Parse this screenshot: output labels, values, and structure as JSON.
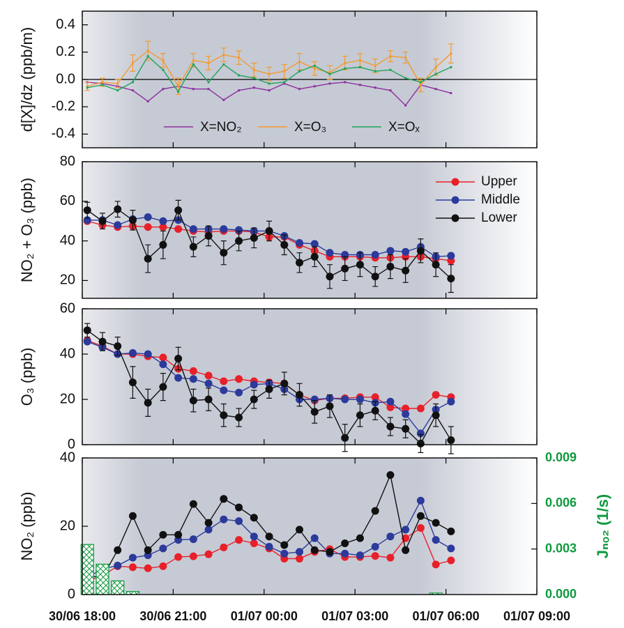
{
  "chart_data": [
    {
      "type": "line",
      "ylabel": "d[X]/dz  (ppb/m)",
      "ylim": [
        -0.5,
        0.5
      ],
      "yticks": [
        -0.4,
        -0.2,
        {
          "value": 0,
          "label": "0.0"
        },
        0.2,
        0.4
      ],
      "hline": 0,
      "markers": false,
      "legend": "lower center",
      "x": [
        "30/06 18:10",
        "30/06 18:40",
        "30/06 19:10",
        "30/06 19:40",
        "30/06 20:10",
        "30/06 20:40",
        "30/06 21:10",
        "30/06 21:40",
        "30/06 22:10",
        "30/06 22:40",
        "30/06 23:10",
        "30/06 23:40",
        "01/07 00:10",
        "01/07 00:40",
        "01/07 01:10",
        "01/07 01:40",
        "01/07 02:10",
        "01/07 02:40",
        "01/07 03:10",
        "01/07 03:40",
        "01/07 04:10",
        "01/07 04:40",
        "01/07 05:10",
        "01/07 05:40",
        "01/07 06:10"
      ],
      "series": [
        {
          "name": "X=NO₂",
          "color": "#8b2f9e",
          "values": [
            -0.02,
            -0.03,
            -0.05,
            -0.08,
            -0.16,
            -0.07,
            -0.05,
            -0.07,
            -0.07,
            -0.15,
            -0.08,
            -0.06,
            -0.08,
            -0.03,
            -0.07,
            -0.05,
            -0.03,
            -0.02,
            -0.04,
            -0.06,
            -0.08,
            -0.19,
            -0.04,
            -0.07,
            -0.1
          ]
        },
        {
          "name": "X=O₃",
          "color": "#f39a2e",
          "values": [
            -0.05,
            -0.02,
            -0.03,
            0.12,
            0.21,
            0.14,
            -0.05,
            0.14,
            0.12,
            0.18,
            0.16,
            0.07,
            0.04,
            0.06,
            0.13,
            0.08,
            0.05,
            0.12,
            0.14,
            0.1,
            0.17,
            0.16,
            -0.04,
            0.09,
            0.19
          ],
          "errors": [
            0.03,
            0.03,
            0.03,
            0.06,
            0.07,
            0.05,
            0.06,
            0.05,
            0.05,
            0.05,
            0.05,
            0.05,
            0.05,
            0.05,
            0.06,
            0.05,
            0.05,
            0.05,
            0.05,
            0.05,
            0.04,
            0.04,
            0.05,
            0.06,
            0.07
          ]
        },
        {
          "name": "X=Oₓ",
          "color": "#1fa35a",
          "values": [
            -0.06,
            -0.04,
            -0.08,
            -0.02,
            0.17,
            0.07,
            -0.09,
            0.11,
            -0.02,
            0.11,
            0.03,
            0.01,
            -0.03,
            -0.02,
            0.06,
            0.1,
            0.04,
            0.08,
            0.09,
            0.06,
            0.07,
            0.01,
            -0.02,
            0.04,
            0.09
          ]
        }
      ]
    },
    {
      "type": "line",
      "ylabel": "NO₂ + O₃ (ppb)",
      "ylim": [
        11,
        80
      ],
      "yticks": [
        20,
        40,
        60,
        80
      ],
      "markers": true,
      "legend": "upper right",
      "x": [
        "30/06 18:10",
        "30/06 18:40",
        "30/06 19:10",
        "30/06 19:40",
        "30/06 20:10",
        "30/06 20:40",
        "30/06 21:10",
        "30/06 21:40",
        "30/06 22:10",
        "30/06 22:40",
        "30/06 23:10",
        "30/06 23:40",
        "01/07 00:10",
        "01/07 00:40",
        "01/07 01:10",
        "01/07 01:40",
        "01/07 02:10",
        "01/07 02:40",
        "01/07 03:10",
        "01/07 03:40",
        "01/07 04:10",
        "01/07 04:40",
        "01/07 05:10",
        "01/07 05:40",
        "01/07 06:10"
      ],
      "series": [
        {
          "name": "Upper",
          "color": "#e8202a",
          "values": [
            50,
            48,
            47,
            47.5,
            47,
            47,
            46,
            45,
            44.5,
            45,
            45,
            44.5,
            42,
            42,
            38,
            35,
            32,
            32,
            32,
            31.5,
            31.5,
            32,
            32,
            31,
            30
          ]
        },
        {
          "name": "Middle",
          "color": "#2b3a9b",
          "values": [
            50.5,
            50.5,
            48,
            51,
            52,
            50,
            50.5,
            46,
            46,
            46,
            45.5,
            45,
            45,
            42.5,
            39,
            38.5,
            34,
            33,
            33,
            33,
            35,
            34.5,
            37,
            32,
            32.5
          ]
        },
        {
          "name": "Lower",
          "color": "#111111",
          "values": [
            55.5,
            50,
            56,
            50.5,
            31,
            38,
            55.5,
            37,
            42.5,
            34,
            40,
            41.5,
            45,
            38,
            29,
            32,
            22,
            26,
            28,
            22,
            27,
            25,
            35,
            28,
            21
          ],
          "errors": [
            4,
            4,
            4,
            5,
            7,
            7,
            5,
            5,
            5,
            6,
            5,
            5,
            5,
            5,
            5,
            5,
            6,
            6,
            6,
            5,
            6,
            6,
            6,
            6,
            7
          ]
        }
      ]
    },
    {
      "type": "line",
      "ylabel": "O₃ (ppb)",
      "ylim": [
        0,
        60
      ],
      "yticks": [
        0,
        20,
        40,
        60
      ],
      "markers": true,
      "x": [
        "30/06 18:10",
        "30/06 18:40",
        "30/06 19:10",
        "30/06 19:40",
        "30/06 20:10",
        "30/06 20:40",
        "30/06 21:10",
        "30/06 21:40",
        "30/06 22:10",
        "30/06 22:40",
        "30/06 23:10",
        "30/06 23:40",
        "01/07 00:10",
        "01/07 00:40",
        "01/07 01:10",
        "01/07 01:40",
        "01/07 02:10",
        "01/07 02:40",
        "01/07 03:10",
        "01/07 03:40",
        "01/07 04:10",
        "01/07 04:40",
        "01/07 05:10",
        "01/07 05:40",
        "01/07 06:10"
      ],
      "series": [
        {
          "name": "Upper",
          "color": "#e8202a",
          "values": [
            46,
            43.5,
            40,
            40,
            39,
            38.5,
            33.5,
            32.5,
            30.5,
            28,
            29,
            28,
            27.5,
            27,
            22,
            19.5,
            20.5,
            20.5,
            21,
            21,
            16.5,
            16,
            16,
            22,
            21
          ]
        },
        {
          "name": "Middle",
          "color": "#2b3a9b",
          "values": [
            45.5,
            43,
            40,
            40.5,
            40,
            35.5,
            29.5,
            29,
            27,
            24,
            23,
            26.5,
            27,
            24.5,
            20,
            20,
            20.5,
            20,
            20,
            18.5,
            19,
            13.5,
            5,
            15.5,
            19
          ]
        },
        {
          "name": "Lower",
          "color": "#111111",
          "values": [
            50.5,
            45.5,
            43.5,
            27.5,
            18.5,
            25.5,
            38,
            19.5,
            20,
            13,
            12,
            20,
            24.5,
            27,
            22,
            14.5,
            17,
            3,
            13,
            15,
            8,
            7,
            0.5,
            13,
            2
          ],
          "errors": [
            3,
            4,
            4,
            7,
            6,
            6,
            5,
            5,
            5,
            5,
            4,
            4,
            4,
            5,
            5,
            5,
            5,
            6,
            5,
            4,
            4,
            4,
            4,
            5,
            6
          ]
        }
      ]
    },
    {
      "type": "line",
      "ylabel": "NO₂ (ppb)",
      "ylim": [
        0,
        40
      ],
      "yticks": [
        0,
        20,
        40
      ],
      "markers": true,
      "y2label": "Jₙₒ₂ (1/s)",
      "y2lim": [
        0,
        0.009
      ],
      "y2ticks": [
        {
          "value": 0,
          "label": "0.000"
        },
        {
          "value": 0.003,
          "label": "0.003"
        },
        {
          "value": 0.006,
          "label": "0.006"
        },
        {
          "value": 0.009,
          "label": "0.009"
        }
      ],
      "xlim": [
        "30/06 18:00",
        "01/07 09:00"
      ],
      "xticks": [
        "30/06 18:00",
        "30/06 21:00",
        "01/07 00:00",
        "01/07 03:00",
        "01/07 06:00",
        "01/07 09:00"
      ],
      "x": [
        "30/06 18:10",
        "30/06 18:40",
        "30/06 19:10",
        "30/06 19:40",
        "30/06 20:10",
        "30/06 20:40",
        "30/06 21:10",
        "30/06 21:40",
        "30/06 22:10",
        "30/06 22:40",
        "30/06 23:10",
        "30/06 23:40",
        "01/07 00:10",
        "01/07 00:40",
        "01/07 01:10",
        "01/07 01:40",
        "01/07 02:10",
        "01/07 02:40",
        "01/07 03:10",
        "01/07 03:40",
        "01/07 04:10",
        "01/07 04:40",
        "01/07 05:10",
        "01/07 05:40",
        "01/07 06:10"
      ],
      "series": [
        {
          "name": "Upper",
          "color": "#e8202a",
          "values": [
            4,
            5.5,
            8.3,
            8,
            7.7,
            8.3,
            11,
            11.2,
            11.8,
            13.8,
            16,
            15,
            13.5,
            10.5,
            10.5,
            12.5,
            13.3,
            11,
            11,
            11.3,
            10.8,
            16.5,
            19.5,
            8.8,
            10
          ]
        },
        {
          "name": "Middle",
          "color": "#2b3a9b",
          "values": [
            5,
            7.5,
            8.5,
            10.8,
            11.5,
            13.5,
            16,
            16.2,
            19,
            22,
            21.5,
            17,
            14,
            12,
            12.5,
            16.5,
            12,
            12,
            11.5,
            14,
            17,
            19,
            27.5,
            16,
            13.5
          ]
        },
        {
          "name": "Lower",
          "color": "#111111",
          "values": [
            5.5,
            5,
            13,
            23,
            13,
            17.5,
            17.5,
            26.5,
            21,
            28,
            25.5,
            22.5,
            17,
            14.5,
            19,
            13,
            12.5,
            15,
            16.5,
            24.5,
            35,
            13,
            23,
            21,
            18.5
          ]
        },
        {
          "type": "bar",
          "axis": "y2",
          "color": "#0e9a3e",
          "x": [
            "30/06 18:10",
            "30/06 18:40",
            "30/06 19:10",
            "30/06 19:40",
            "01/07 05:40"
          ],
          "values": [
            0.0033,
            0.002,
            0.0009,
            0.0002,
            0.0001
          ]
        }
      ]
    }
  ]
}
